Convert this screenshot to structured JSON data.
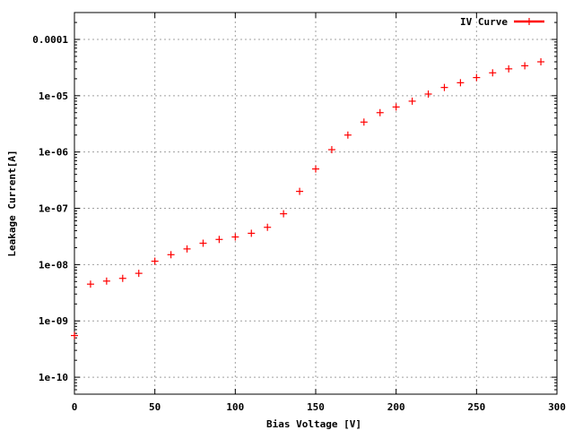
{
  "chart_data": {
    "type": "scatter",
    "title": "",
    "xlabel": "Bias Voltage [V]",
    "ylabel": "Leakage Current[A]",
    "xlim": [
      0,
      300
    ],
    "ylim": [
      5e-11,
      0.0003
    ],
    "y_scale": "log",
    "grid": true,
    "legend_position": "top-right",
    "x_ticks": [
      0,
      50,
      100,
      150,
      200,
      250,
      300
    ],
    "x_tick_labels": [
      "0",
      "50",
      "100",
      "150",
      "200",
      "250",
      "300"
    ],
    "y_ticks": [
      1e-10,
      1e-09,
      1e-08,
      1e-07,
      1e-06,
      1e-05,
      0.0001
    ],
    "y_tick_labels": [
      "1e-10",
      "1e-09",
      "1e-08",
      "1e-07",
      "1e-06",
      "1e-05",
      "0.0001"
    ],
    "series": [
      {
        "name": "IV Curve",
        "color": "#ff0000",
        "marker": "plus",
        "x": [
          0,
          10,
          20,
          30,
          40,
          50,
          60,
          70,
          80,
          90,
          100,
          110,
          120,
          130,
          140,
          150,
          160,
          170,
          180,
          190,
          200,
          210,
          220,
          230,
          240,
          250,
          260,
          270,
          280,
          290
        ],
        "y": [
          5.5e-10,
          4.5e-09,
          5.1e-09,
          5.7e-09,
          7e-09,
          1.15e-08,
          1.5e-08,
          1.9e-08,
          2.4e-08,
          2.8e-08,
          3.1e-08,
          3.6e-08,
          4.6e-08,
          8e-08,
          2e-07,
          5e-07,
          1.1e-06,
          2e-06,
          3.4e-06,
          5e-06,
          6.3e-06,
          8e-06,
          1.07e-05,
          1.4e-05,
          1.7e-05,
          2.1e-05,
          2.55e-05,
          3e-05,
          3.4e-05,
          4e-05
        ]
      }
    ]
  }
}
